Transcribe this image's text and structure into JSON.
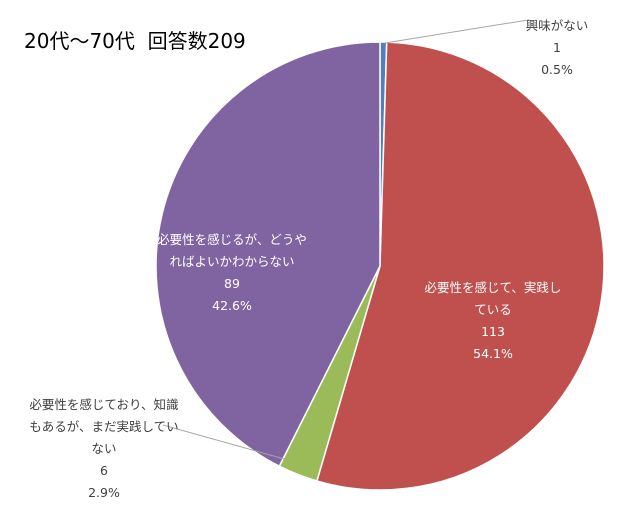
{
  "chart_data": {
    "type": "pie",
    "title": "20代～70代  回答数209",
    "slices": [
      {
        "label_lines": [
          "興味がない"
        ],
        "value": 1,
        "value_text": "1",
        "percent_text": "0.5%",
        "color": "#4f81bd"
      },
      {
        "label_lines": [
          "必要性を感じて、実践し",
          "ている"
        ],
        "value": 113,
        "value_text": "113",
        "percent_text": "54.1%",
        "color": "#c0504d"
      },
      {
        "label_lines": [
          "必要性を感じており、知識",
          "もあるが、まだ実践してい",
          "ない"
        ],
        "value": 6,
        "value_text": "6",
        "percent_text": "2.9%",
        "color": "#9bbb59"
      },
      {
        "label_lines": [
          "必要性を感じるが、どうや",
          "ればよいかわからない"
        ],
        "value": 89,
        "value_text": "89",
        "percent_text": "42.6%",
        "color": "#8064a2"
      }
    ]
  }
}
